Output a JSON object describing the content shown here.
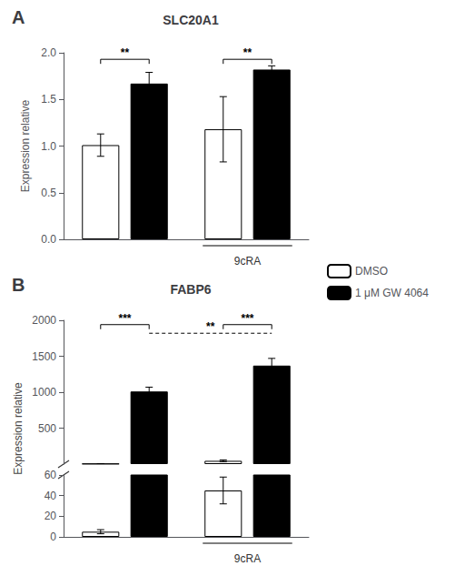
{
  "chart_data": [
    {
      "type": "bar",
      "panel_label": "A",
      "title": "SLC20A1",
      "ylabel": "Expression relative",
      "categories": [
        null,
        "9cRA"
      ],
      "series": [
        {
          "name": "DMSO",
          "color": "white",
          "values": [
            1.01,
            1.18
          ],
          "errors": [
            0.12,
            0.35
          ]
        },
        {
          "name": "1 μM GW 4064",
          "color": "black",
          "values": [
            1.67,
            1.82
          ],
          "errors": [
            0.12,
            0.04
          ]
        }
      ],
      "ylim": [
        0.0,
        2.0
      ],
      "yticks": [
        {
          "value": 0.0,
          "label": "0.0"
        },
        {
          "value": 0.5,
          "label": "0.5"
        },
        {
          "value": 1.0,
          "label": "1.0"
        },
        {
          "value": 1.5,
          "label": "1.5"
        },
        {
          "value": 2.0,
          "label": "2.0"
        }
      ],
      "grid": false,
      "legend": "right",
      "annotations": [
        {
          "text": "**",
          "y": 1.93,
          "from": [
            0,
            0
          ],
          "to": [
            0,
            1
          ],
          "line_style": "solid"
        },
        {
          "text": "**",
          "y": 1.93,
          "from": [
            1,
            0
          ],
          "to": [
            1,
            1
          ],
          "line_style": "solid"
        }
      ]
    },
    {
      "type": "bar",
      "panel_label": "B",
      "title": "FABP6",
      "ylabel": "Expression relative",
      "categories": [
        null,
        "9cRA"
      ],
      "series": [
        {
          "name": "DMSO",
          "color": "white",
          "values": [
            5,
            45
          ],
          "errors": [
            2,
            13
          ]
        },
        {
          "name": "1 μM GW 4064",
          "color": "black",
          "values": [
            1010,
            1370
          ],
          "errors": [
            60,
            100
          ]
        }
      ],
      "ylim": [
        0,
        2000
      ],
      "yticks": [
        500,
        1000,
        1500,
        2000
      ],
      "lower_axis": {
        "ylim": [
          0,
          60
        ],
        "yticks": [
          0,
          20,
          40,
          60
        ]
      },
      "grid": false,
      "annotations": [
        {
          "text": "***",
          "y": 1940,
          "from": [
            0,
            0
          ],
          "to": [
            0,
            1
          ],
          "line_style": "solid"
        },
        {
          "text": "**",
          "y": 1820,
          "from": [
            0,
            1
          ],
          "to": [
            1,
            1
          ],
          "line_style": "dashed"
        },
        {
          "text": "***",
          "y": 1940,
          "from": [
            1,
            0
          ],
          "to": [
            1,
            1
          ],
          "line_style": "solid"
        }
      ]
    }
  ]
}
